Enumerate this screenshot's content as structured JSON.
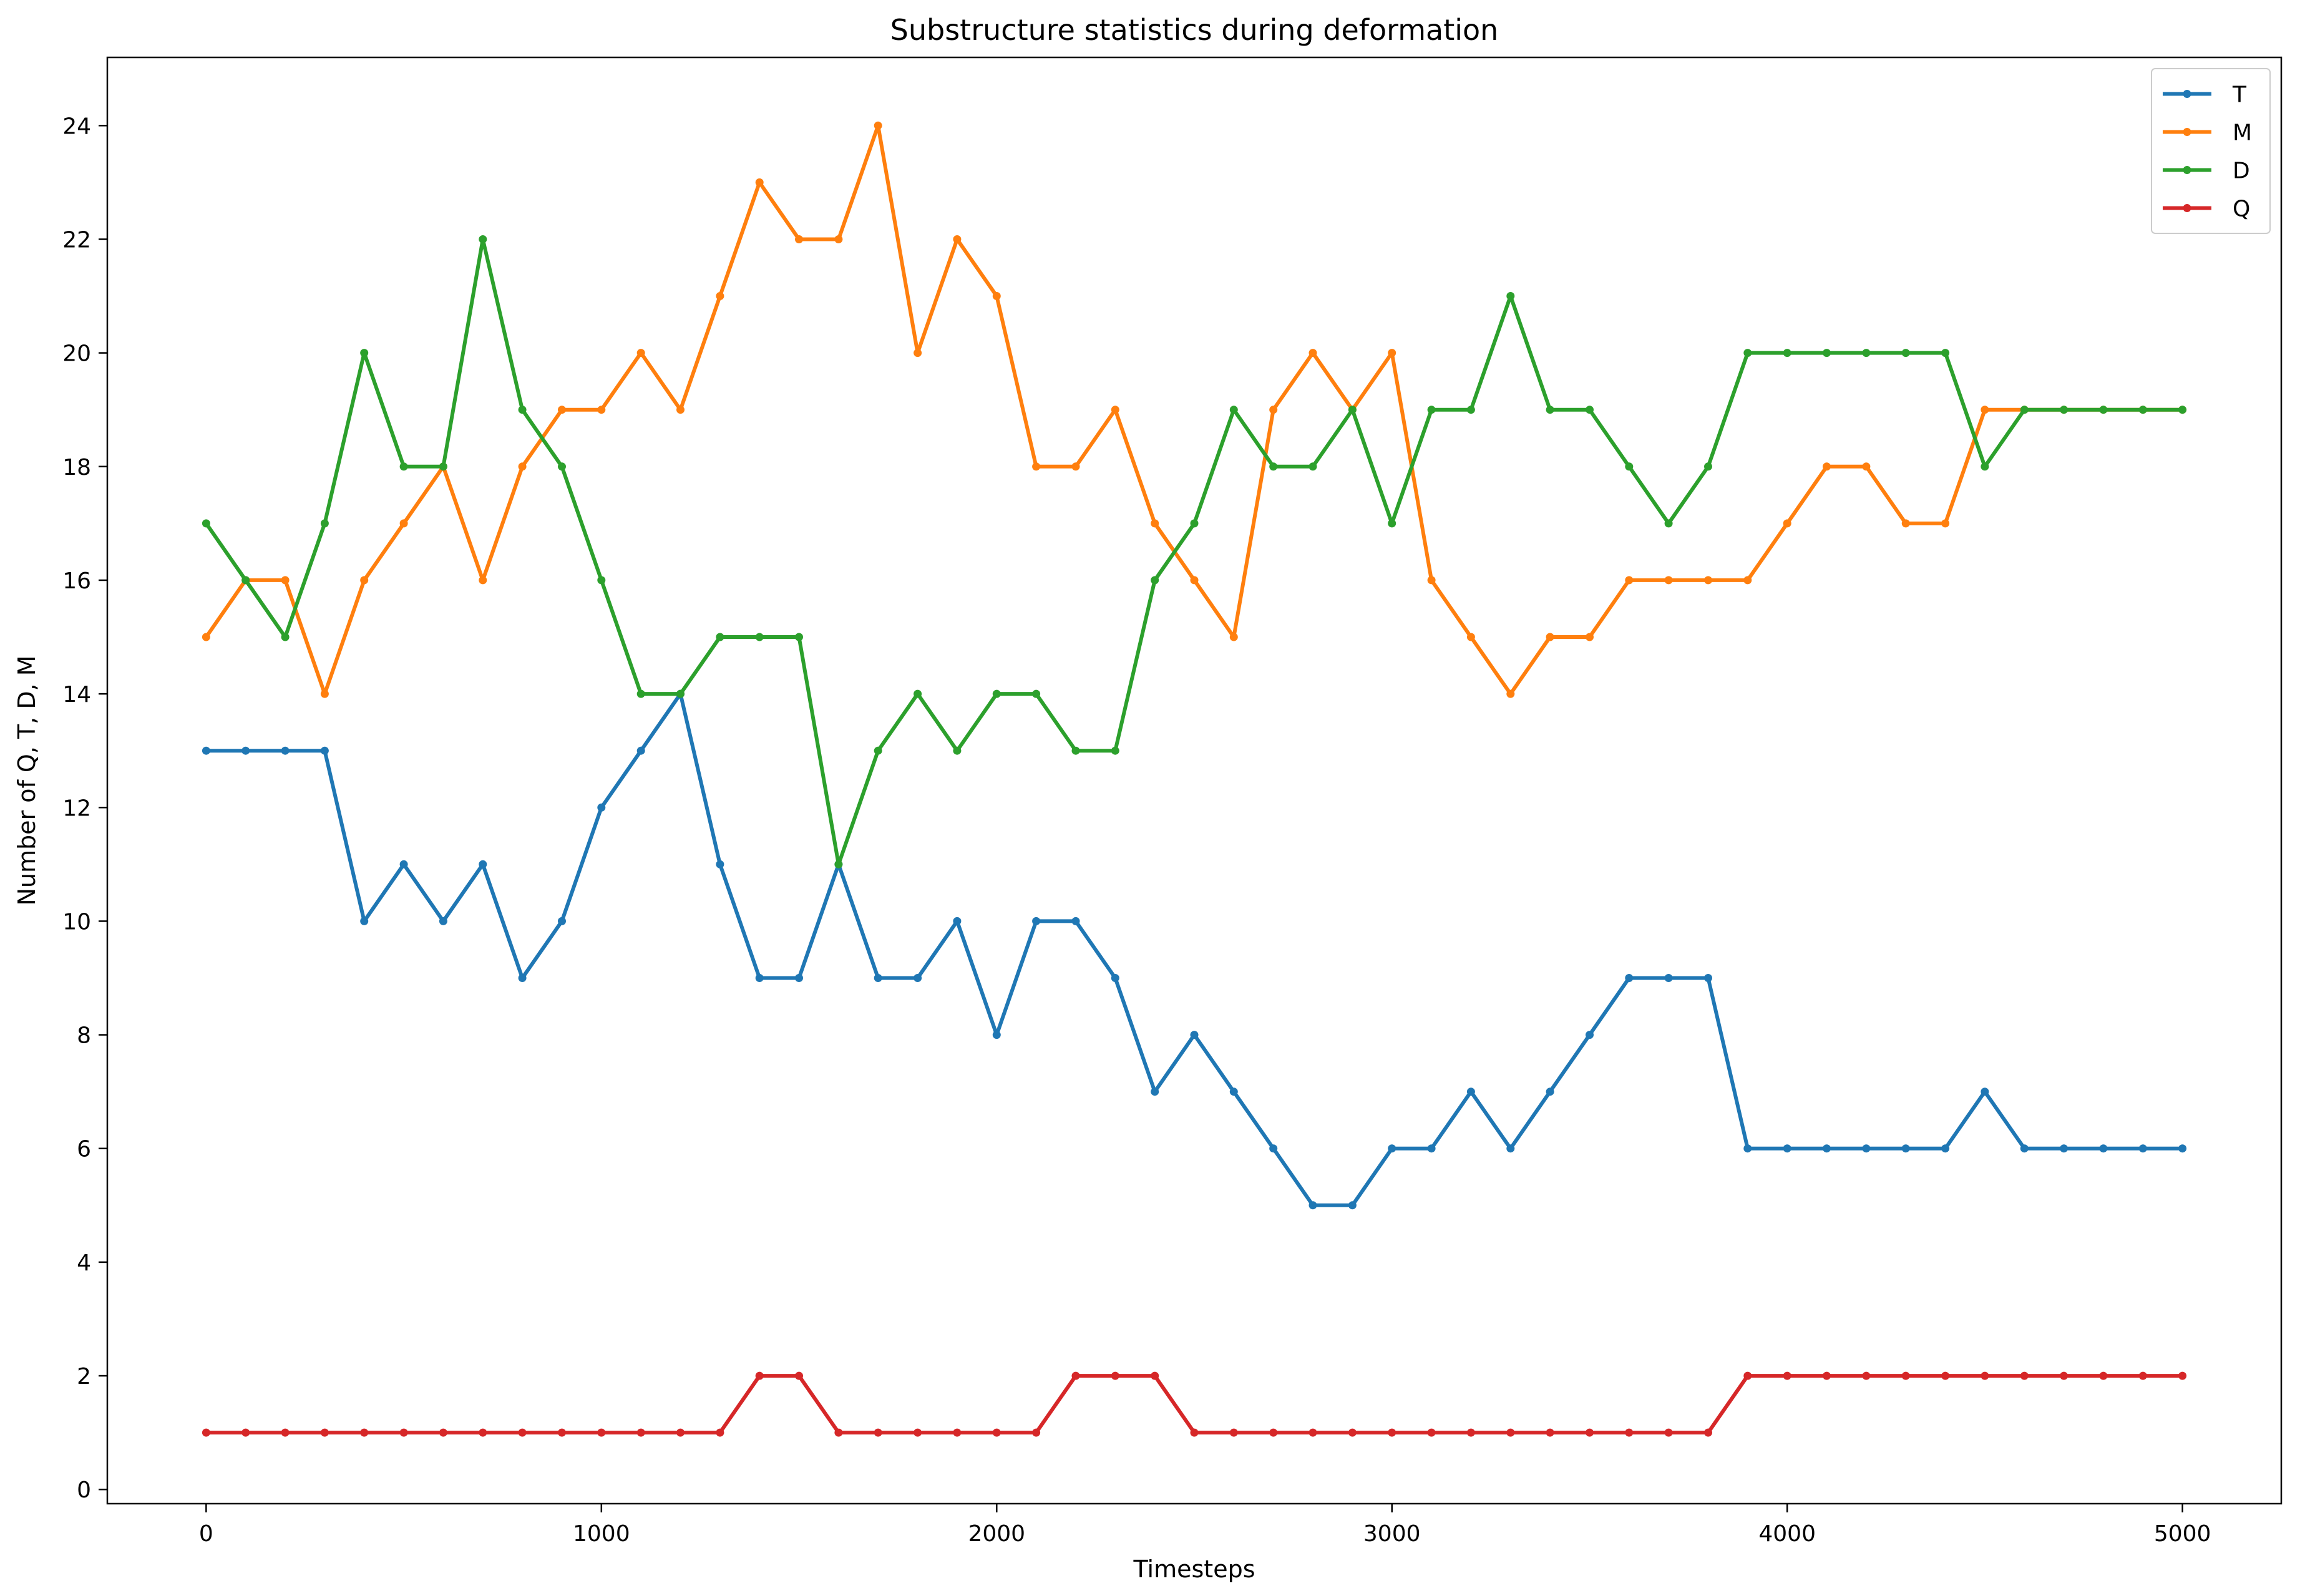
{
  "chart_data": {
    "type": "line",
    "title": "Substructure statistics during deformation",
    "xlabel": "Timesteps",
    "ylabel": "Number of Q, T, D, M",
    "xlim": [
      -250,
      5250
    ],
    "ylim": [
      -0.25,
      25.2
    ],
    "xticks": [
      0,
      1000,
      2000,
      3000,
      4000,
      5000
    ],
    "yticks": [
      0,
      2,
      4,
      6,
      8,
      10,
      12,
      14,
      16,
      18,
      20,
      22,
      24
    ],
    "legend_position": "top-right",
    "x": [
      0,
      100,
      200,
      300,
      400,
      500,
      600,
      700,
      800,
      900,
      1000,
      1100,
      1200,
      1300,
      1400,
      1500,
      1600,
      1700,
      1800,
      1900,
      2000,
      2100,
      2200,
      2300,
      2400,
      2500,
      2600,
      2700,
      2800,
      2900,
      3000,
      3100,
      3200,
      3300,
      3400,
      3500,
      3600,
      3700,
      3800,
      3900,
      4000,
      4100,
      4200,
      4300,
      4400,
      4500,
      4600,
      4700,
      4800,
      4900,
      5000
    ],
    "series": [
      {
        "name": "T",
        "color": "#1f77b4",
        "values": [
          13,
          13,
          13,
          13,
          10,
          11,
          10,
          11,
          9,
          10,
          12,
          13,
          14,
          11,
          9,
          9,
          11,
          9,
          9,
          10,
          8,
          10,
          10,
          9,
          7,
          8,
          7,
          6,
          5,
          5,
          6,
          6,
          7,
          6,
          7,
          8,
          9,
          9,
          9,
          6,
          6,
          6,
          6,
          6,
          6,
          7,
          6,
          6,
          6,
          6,
          6
        ]
      },
      {
        "name": "M",
        "color": "#ff7f0e",
        "values": [
          15,
          16,
          16,
          14,
          16,
          17,
          18,
          16,
          18,
          19,
          19,
          20,
          19,
          21,
          23,
          22,
          22,
          24,
          20,
          22,
          21,
          18,
          18,
          19,
          17,
          16,
          15,
          19,
          20,
          19,
          20,
          16,
          15,
          14,
          15,
          15,
          16,
          16,
          16,
          16,
          17,
          18,
          18,
          17,
          17,
          19,
          19,
          19,
          19,
          19,
          19
        ]
      },
      {
        "name": "D",
        "color": "#2ca02c",
        "values": [
          17,
          16,
          15,
          17,
          20,
          18,
          18,
          22,
          19,
          18,
          16,
          14,
          14,
          15,
          15,
          15,
          11,
          13,
          14,
          13,
          14,
          14,
          13,
          13,
          16,
          17,
          19,
          18,
          18,
          19,
          17,
          19,
          19,
          21,
          19,
          19,
          18,
          17,
          18,
          20,
          20,
          20,
          20,
          20,
          20,
          18,
          19,
          19,
          19,
          19,
          19
        ]
      },
      {
        "name": "Q",
        "color": "#d62728",
        "values": [
          1,
          1,
          1,
          1,
          1,
          1,
          1,
          1,
          1,
          1,
          1,
          1,
          1,
          1,
          2,
          2,
          1,
          1,
          1,
          1,
          1,
          1,
          2,
          2,
          2,
          1,
          1,
          1,
          1,
          1,
          1,
          1,
          1,
          1,
          1,
          1,
          1,
          1,
          1,
          2,
          2,
          2,
          2,
          2,
          2,
          2,
          2,
          2,
          2,
          2,
          2
        ]
      }
    ]
  }
}
